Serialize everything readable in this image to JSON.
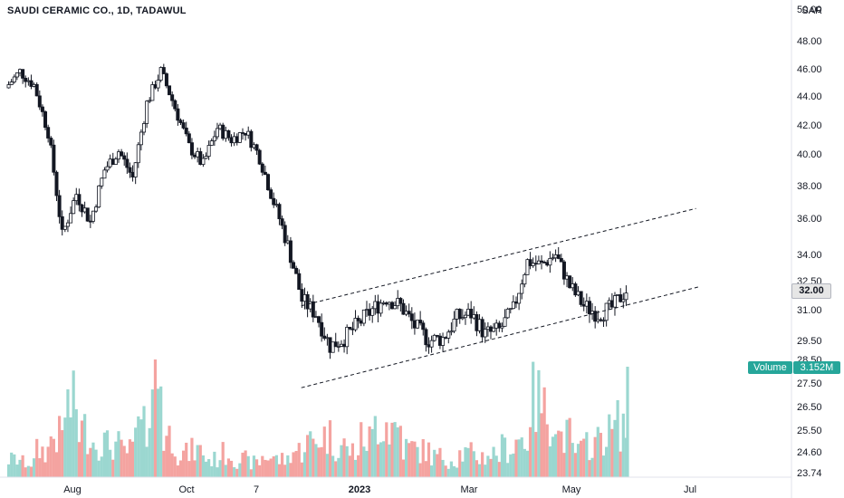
{
  "header": {
    "title": "SAUDI CERAMIC CO., 1D, TADAWUL",
    "currency": "SAR"
  },
  "badges": {
    "last_price": "32.00",
    "volume_label": "Volume",
    "volume_value": "3.152M"
  },
  "colors": {
    "up": "#26a69a",
    "down": "#ef5350",
    "candle": "#131722",
    "axis": "#131722",
    "channel": "#131722"
  },
  "chart_data": {
    "type": "candlestick",
    "y_ticks": [
      "50.00",
      "48.00",
      "46.00",
      "44.00",
      "42.00",
      "40.00",
      "38.00",
      "36.00",
      "34.00",
      "32.50",
      "31.00",
      "29.50",
      "28.50",
      "27.50",
      "26.50",
      "25.50",
      "24.60",
      "23.74"
    ],
    "x_ticks": [
      "Aug",
      "Oct",
      "7",
      "2023",
      "Mar",
      "May",
      "Jul"
    ],
    "close_series": [
      {
        "date": "2022-07-05",
        "close": 44.6
      },
      {
        "date": "2022-07-12",
        "close": 45.8
      },
      {
        "date": "2022-07-19",
        "close": 44.8
      },
      {
        "date": "2022-07-26",
        "close": 41.5
      },
      {
        "date": "2022-08-02",
        "close": 35.0
      },
      {
        "date": "2022-08-09",
        "close": 37.5
      },
      {
        "date": "2022-08-16",
        "close": 35.8
      },
      {
        "date": "2022-08-23",
        "close": 39.0
      },
      {
        "date": "2022-08-30",
        "close": 40.2
      },
      {
        "date": "2022-09-06",
        "close": 38.5
      },
      {
        "date": "2022-09-13",
        "close": 43.5
      },
      {
        "date": "2022-09-20",
        "close": 45.8
      },
      {
        "date": "2022-09-27",
        "close": 43.2
      },
      {
        "date": "2022-10-04",
        "close": 40.5
      },
      {
        "date": "2022-10-11",
        "close": 39.3
      },
      {
        "date": "2022-10-18",
        "close": 41.8
      },
      {
        "date": "2022-10-25",
        "close": 41.0
      },
      {
        "date": "2022-11-01",
        "close": 41.6
      },
      {
        "date": "2022-11-08",
        "close": 39.8
      },
      {
        "date": "2022-11-15",
        "close": 37.0
      },
      {
        "date": "2022-11-22",
        "close": 34.5
      },
      {
        "date": "2022-11-29",
        "close": 31.5
      },
      {
        "date": "2022-12-06",
        "close": 30.8
      },
      {
        "date": "2022-12-13",
        "close": 29.2
      },
      {
        "date": "2022-12-20",
        "close": 29.6
      },
      {
        "date": "2022-12-27",
        "close": 30.3
      },
      {
        "date": "2023-01-03",
        "close": 31.0
      },
      {
        "date": "2023-01-10",
        "close": 31.6
      },
      {
        "date": "2023-01-17",
        "close": 31.2
      },
      {
        "date": "2023-01-24",
        "close": 30.2
      },
      {
        "date": "2023-01-31",
        "close": 29.5
      },
      {
        "date": "2023-02-07",
        "close": 29.6
      },
      {
        "date": "2023-02-14",
        "close": 30.6
      },
      {
        "date": "2023-02-21",
        "close": 30.8
      },
      {
        "date": "2023-02-28",
        "close": 29.8
      },
      {
        "date": "2023-03-07",
        "close": 30.0
      },
      {
        "date": "2023-03-14",
        "close": 31.0
      },
      {
        "date": "2023-03-21",
        "close": 33.6
      },
      {
        "date": "2023-03-28",
        "close": 33.4
      },
      {
        "date": "2023-04-04",
        "close": 34.0
      },
      {
        "date": "2023-04-11",
        "close": 32.2
      },
      {
        "date": "2023-04-18",
        "close": 31.2
      },
      {
        "date": "2023-04-25",
        "close": 30.8
      },
      {
        "date": "2023-05-02",
        "close": 31.1
      },
      {
        "date": "2023-05-09",
        "close": 32.0
      }
    ],
    "volume_millions": [
      0.6,
      0.5,
      0.9,
      1.4,
      2.4,
      1.6,
      1.2,
      1.1,
      0.9,
      1.6,
      3.4,
      1.4,
      0.8,
      0.9,
      0.6,
      0.8,
      0.6,
      0.5,
      0.7,
      0.6,
      0.9,
      1.2,
      1.4,
      1.1,
      0.9,
      1.3,
      1.9,
      1.7,
      1.0,
      0.9,
      0.7,
      0.6,
      0.8,
      0.7,
      0.8,
      1.0,
      1.3,
      2.6,
      2.2,
      1.4,
      0.9,
      1.2,
      1.5,
      1.8,
      3.152
    ],
    "channel": {
      "upper": [
        {
          "date": "2022-11-28",
          "price": 31.2
        },
        {
          "date": "2023-06-12",
          "price": 36.6
        }
      ],
      "lower": [
        {
          "date": "2022-11-28",
          "price": 27.3
        },
        {
          "date": "2023-06-14",
          "price": 32.2
        }
      ]
    }
  }
}
